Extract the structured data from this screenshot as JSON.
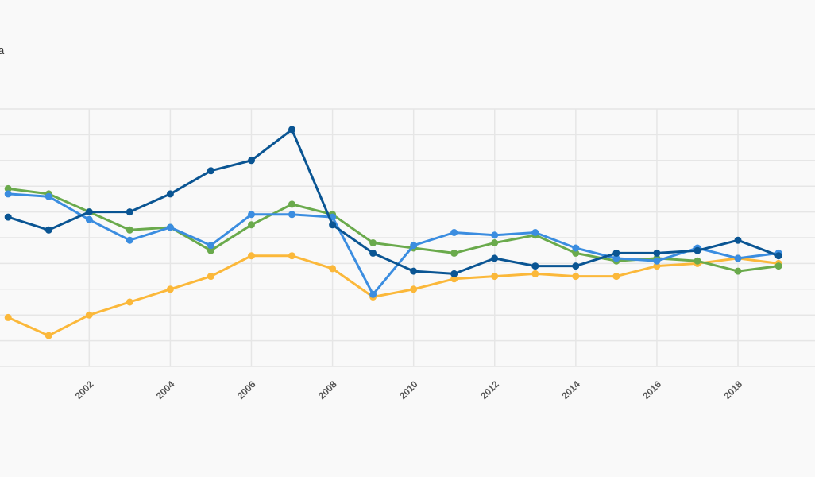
{
  "chart_data": {
    "type": "line",
    "title": "",
    "xlabel": "",
    "ylabel": "",
    "legend_fragment": "a",
    "x": [
      2000,
      2001,
      2002,
      2003,
      2004,
      2005,
      2006,
      2007,
      2008,
      2009,
      2010,
      2011,
      2012,
      2013,
      2014,
      2015,
      2016,
      2017,
      2018,
      2019
    ],
    "x_tick_labels": [
      "2002",
      "2004",
      "2006",
      "2008",
      "2010",
      "2012",
      "2014",
      "2016",
      "2018"
    ],
    "x_tick_values": [
      2002,
      2004,
      2006,
      2008,
      2010,
      2012,
      2014,
      2016,
      2018
    ],
    "xlim": [
      1999.8,
      2019.9
    ],
    "ylim": [
      0,
      10
    ],
    "y_gridlines": [
      0,
      1,
      2,
      3,
      4,
      5,
      6,
      7,
      8,
      9,
      10
    ],
    "grid": true,
    "series": [
      {
        "color": "#0a5593",
        "values": [
          5.8,
          5.3,
          6.0,
          6.0,
          6.7,
          7.6,
          8.0,
          9.2,
          5.5,
          4.4,
          3.7,
          3.6,
          4.2,
          3.9,
          3.9,
          4.4,
          4.4,
          4.5,
          4.9,
          4.3
        ]
      },
      {
        "color": "#3b8de0",
        "values": [
          6.7,
          6.6,
          5.7,
          4.9,
          5.4,
          4.7,
          5.9,
          5.9,
          5.8,
          2.8,
          4.7,
          5.2,
          5.1,
          5.2,
          4.6,
          4.2,
          4.1,
          4.6,
          4.2,
          4.4
        ]
      },
      {
        "color": "#6aaa4c",
        "values": [
          6.9,
          6.7,
          6.0,
          5.3,
          5.4,
          4.5,
          5.5,
          6.3,
          5.9,
          4.8,
          4.6,
          4.4,
          4.8,
          5.1,
          4.4,
          4.1,
          4.2,
          4.1,
          3.7,
          3.9
        ]
      },
      {
        "color": "#fbb83a",
        "values": [
          1.9,
          1.2,
          2.0,
          2.5,
          3.0,
          3.5,
          4.3,
          4.3,
          3.8,
          2.7,
          3.0,
          3.4,
          3.5,
          3.6,
          3.5,
          3.5,
          3.9,
          4.0,
          4.2,
          4.0
        ]
      }
    ]
  }
}
